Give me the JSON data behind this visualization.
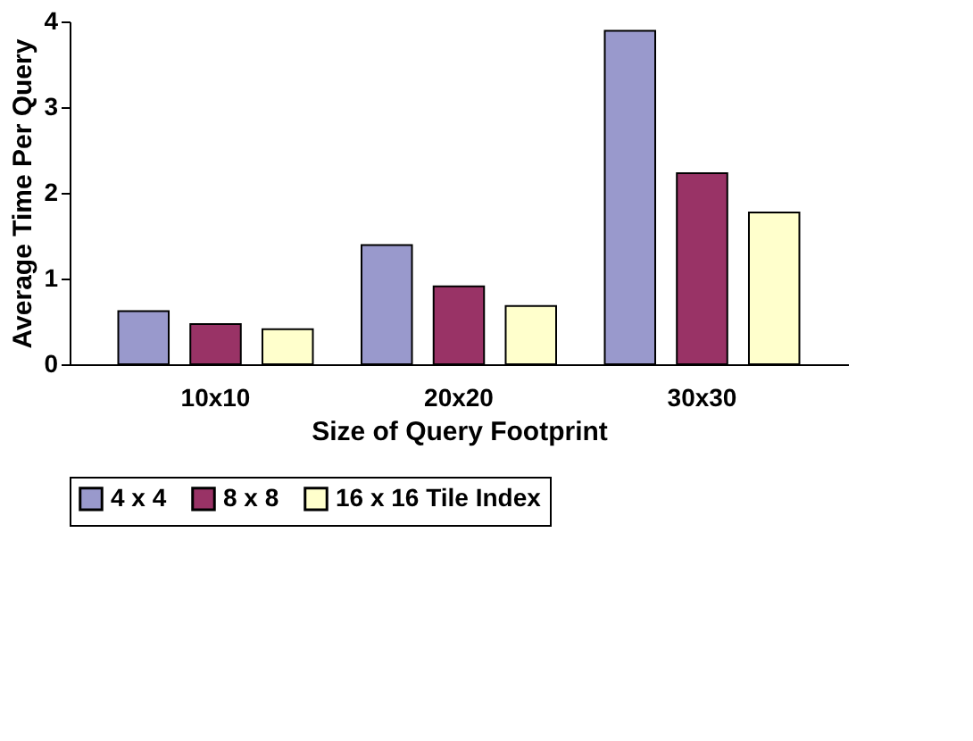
{
  "chart_data": {
    "type": "bar",
    "xlabel": "Size of Query Footprint",
    "ylabel": "Average Time Per Query",
    "categories": [
      "10x10",
      "20x20",
      "30x30"
    ],
    "series": [
      {
        "name": "4 x 4",
        "color": "#9999cc",
        "values": [
          0.62,
          1.39,
          3.89
        ]
      },
      {
        "name": "8 x 8",
        "color": "#993366",
        "values": [
          0.47,
          0.91,
          2.23
        ]
      },
      {
        "name": "16 x 16 Tile Index",
        "color": "#ffffcc",
        "values": [
          0.41,
          0.68,
          1.77
        ]
      }
    ],
    "ylim": [
      0,
      4
    ],
    "yticks": [
      0,
      1,
      2,
      3,
      4
    ],
    "grid": false,
    "legend": "bottom"
  }
}
